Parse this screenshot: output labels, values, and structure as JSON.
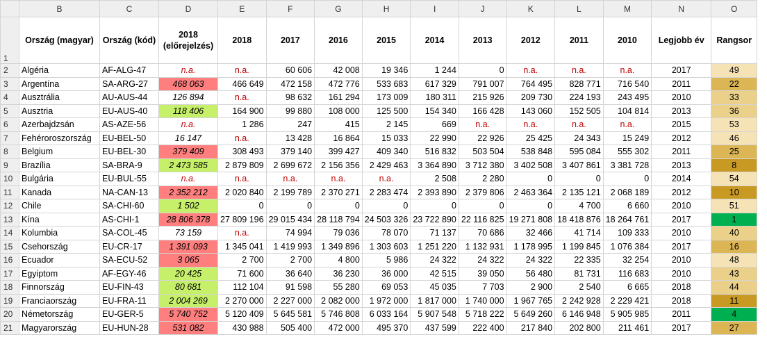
{
  "columns": [
    "B",
    "C",
    "D",
    "E",
    "F",
    "G",
    "H",
    "I",
    "J",
    "K",
    "L",
    "M",
    "N",
    "O"
  ],
  "header": {
    "row_num": "1",
    "cells": [
      "Ország (magyar)",
      "Ország (kód)",
      "2018 (előrejelzés)",
      "2018",
      "2017",
      "2016",
      "2015",
      "2014",
      "2013",
      "2012",
      "2011",
      "2010",
      "Legjobb év",
      "Rangsor"
    ]
  },
  "rows": [
    {
      "n": "2",
      "name": "Algéria",
      "code": "AF-ALG-47",
      "pred": "n.a.",
      "v": [
        "n.a.",
        "60 606",
        "42 008",
        "19 346",
        "1 244",
        "0",
        "n.a.",
        "n.a.",
        "n.a."
      ],
      "best": "2017",
      "rank": "49"
    },
    {
      "n": "3",
      "name": "Argentína",
      "code": "SA-ARG-27",
      "pred": "468 063",
      "v": [
        "466 649",
        "472 158",
        "472 776",
        "533 683",
        "617 329",
        "791 007",
        "764 495",
        "828 771",
        "716 540"
      ],
      "best": "2011",
      "rank": "22"
    },
    {
      "n": "4",
      "name": "Ausztrália",
      "code": "AU-AUS-44",
      "pred": "126 894",
      "v": [
        "n.a.",
        "98 632",
        "161 294",
        "173 009",
        "180 311",
        "215 926",
        "209 730",
        "224 193",
        "243 495"
      ],
      "best": "2010",
      "rank": "33"
    },
    {
      "n": "5",
      "name": "Ausztria",
      "code": "EU-AUS-40",
      "pred": "118 406",
      "v": [
        "164 900",
        "99 880",
        "108 000",
        "125 500",
        "154 340",
        "166 428",
        "143 060",
        "152 505",
        "104 814"
      ],
      "best": "2013",
      "rank": "36"
    },
    {
      "n": "6",
      "name": "Azerbajdzsán",
      "code": "AS-AZE-56",
      "pred": "n.a.",
      "v": [
        "1 286",
        "247",
        "415",
        "2 145",
        "669",
        "n.a.",
        "n.a.",
        "n.a.",
        "n.a."
      ],
      "best": "2015",
      "rank": "53"
    },
    {
      "n": "7",
      "name": "Fehéroroszország",
      "code": "EU-BEL-50",
      "pred": "16 147",
      "v": [
        "n.a.",
        "13 428",
        "16 864",
        "15 033",
        "22 990",
        "22 926",
        "25 425",
        "24 343",
        "15 249"
      ],
      "best": "2012",
      "rank": "46"
    },
    {
      "n": "8",
      "name": "Belgium",
      "code": "EU-BEL-30",
      "pred": "379 409",
      "v": [
        "308 493",
        "379 140",
        "399 427",
        "409 340",
        "516 832",
        "503 504",
        "538 848",
        "595 084",
        "555 302"
      ],
      "best": "2011",
      "rank": "25"
    },
    {
      "n": "9",
      "name": "Brazília",
      "code": "SA-BRA-9",
      "pred": "2 473 585",
      "v": [
        "2 879 809",
        "2 699 672",
        "2 156 356",
        "2 429 463",
        "3 364 890",
        "3 712 380",
        "3 402 508",
        "3 407 861",
        "3 381 728"
      ],
      "best": "2013",
      "rank": "8"
    },
    {
      "n": "10",
      "name": "Bulgária",
      "code": "EU-BUL-55",
      "pred": "n.a.",
      "v": [
        "n.a.",
        "n.a.",
        "n.a.",
        "n.a.",
        "2 508",
        "2 280",
        "0",
        "0",
        "0"
      ],
      "best": "2014",
      "rank": "54"
    },
    {
      "n": "11",
      "name": "Kanada",
      "code": "NA-CAN-13",
      "pred": "2 352 212",
      "v": [
        "2 020 840",
        "2 199 789",
        "2 370 271",
        "2 283 474",
        "2 393 890",
        "2 379 806",
        "2 463 364",
        "2 135 121",
        "2 068 189"
      ],
      "best": "2012",
      "rank": "10"
    },
    {
      "n": "12",
      "name": "Chile",
      "code": "SA-CHI-60",
      "pred": "1 502",
      "v": [
        "0",
        "0",
        "0",
        "0",
        "0",
        "0",
        "0",
        "4 700",
        "6 660"
      ],
      "best": "2010",
      "rank": "51"
    },
    {
      "n": "13",
      "name": "Kína",
      "code": "AS-CHI-1",
      "pred": "28 806 378",
      "v": [
        "27 809 196",
        "29 015 434",
        "28 118 794",
        "24 503 326",
        "23 722 890",
        "22 116 825",
        "19 271 808",
        "18 418 876",
        "18 264 761"
      ],
      "best": "2017",
      "rank": "1"
    },
    {
      "n": "14",
      "name": "Kolumbia",
      "code": "SA-COL-45",
      "pred": "73 159",
      "v": [
        "n.a.",
        "74 994",
        "79 036",
        "78 070",
        "71 137",
        "70 686",
        "32 466",
        "41 714",
        "109 333"
      ],
      "best": "2010",
      "rank": "40"
    },
    {
      "n": "15",
      "name": "Csehország",
      "code": "EU-CR-17",
      "pred": "1 391 093",
      "v": [
        "1 345 041",
        "1 419 993",
        "1 349 896",
        "1 303 603",
        "1 251 220",
        "1 132 931",
        "1 178 995",
        "1 199 845",
        "1 076 384"
      ],
      "best": "2017",
      "rank": "16"
    },
    {
      "n": "16",
      "name": "Ecuador",
      "code": "SA-ECU-52",
      "pred": "3 065",
      "v": [
        "2 700",
        "2 700",
        "4 800",
        "5 986",
        "24 322",
        "24 322",
        "24 322",
        "22 335",
        "32 254"
      ],
      "best": "2010",
      "rank": "48"
    },
    {
      "n": "17",
      "name": "Egyiptom",
      "code": "AF-EGY-46",
      "pred": "20 425",
      "v": [
        "71 600",
        "36 640",
        "36 230",
        "36 000",
        "42 515",
        "39 050",
        "56 480",
        "81 731",
        "116 683"
      ],
      "best": "2010",
      "rank": "43"
    },
    {
      "n": "18",
      "name": "Finnország",
      "code": "EU-FIN-43",
      "pred": "80 681",
      "v": [
        "112 104",
        "91 598",
        "55 280",
        "69 053",
        "45 035",
        "7 703",
        "2 900",
        "2 540",
        "6 665"
      ],
      "best": "2018",
      "rank": "44"
    },
    {
      "n": "19",
      "name": "Franciaország",
      "code": "EU-FRA-11",
      "pred": "2 004 269",
      "v": [
        "2 270 000",
        "2 227 000",
        "2 082 000",
        "1 972 000",
        "1 817 000",
        "1 740 000",
        "1 967 765",
        "2 242 928",
        "2 229 421"
      ],
      "best": "2018",
      "rank": "11"
    },
    {
      "n": "20",
      "name": "Németország",
      "code": "EU-GER-5",
      "pred": "5 740 752",
      "v": [
        "5 120 409",
        "5 645 581",
        "5 746 808",
        "6 033 164",
        "5 907 548",
        "5 718 222",
        "5 649 260",
        "6 146 948",
        "5 905 985"
      ],
      "best": "2011",
      "rank": "4"
    },
    {
      "n": "21",
      "name": "Magyarország",
      "code": "EU-HUN-28",
      "pred": "531 082",
      "v": [
        "430 988",
        "505 400",
        "472 000",
        "495 370",
        "437 599",
        "222 400",
        "217 840",
        "202 800",
        "211 461"
      ],
      "best": "2017",
      "rank": "27"
    }
  ],
  "styles": {
    "pred_colors": {
      "red": "#ff7f7f",
      "green": "#c6ef6a"
    },
    "rank_colors": {
      "light": "#f5e3b6",
      "mid": "#ebd08a",
      "dark": "#dcb554",
      "darker": "#c99a23",
      "top": "#00b050"
    },
    "na_color": "#c00000"
  }
}
